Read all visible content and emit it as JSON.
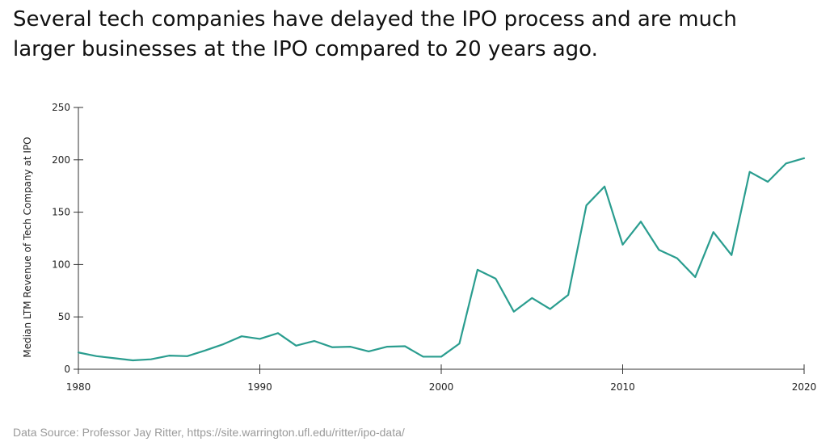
{
  "headline": {
    "line1": "Several tech companies have delayed the IPO process and are much",
    "line2": "larger businesses at the IPO compared to 20 years ago."
  },
  "source_note": "Data Source: Professor Jay Ritter, https://site.warrington.ufl.edu/ritter/ipo-data/",
  "colors": {
    "line": "#2a9d8f",
    "axis": "#333333",
    "text": "#222222"
  },
  "chart_data": {
    "type": "line",
    "title": "",
    "xlabel": "",
    "ylabel": "Median LTM Revenue of Tech Company at IPO",
    "xlim": [
      1980,
      2020
    ],
    "ylim": [
      0,
      250
    ],
    "xticks": [
      1980,
      1990,
      2000,
      2010,
      2020
    ],
    "yticks": [
      0,
      50,
      100,
      150,
      200,
      250
    ],
    "grid": false,
    "legend": "none",
    "series": [
      {
        "x": [
          1980,
          1981,
          1982,
          1983,
          1984,
          1985,
          1986,
          1987,
          1988,
          1989,
          1990,
          1991,
          1992,
          1993,
          1994,
          1995,
          1996,
          1997,
          1998,
          1999,
          2000,
          2001,
          2002,
          2003,
          2004,
          2005,
          2006,
          2007,
          2008,
          2009,
          2010,
          2011,
          2012,
          2013,
          2014,
          2015,
          2016,
          2017,
          2018,
          2019,
          2020
        ],
        "values": [
          16,
          12.5,
          10.5,
          8.5,
          9.5,
          13,
          12.5,
          18,
          24,
          31.5,
          29,
          34.5,
          22.5,
          27,
          21,
          21.5,
          17,
          21.5,
          22,
          12,
          12,
          24.5,
          95,
          86.5,
          55,
          68,
          57.5,
          71,
          156.5,
          174.5,
          119,
          141,
          114,
          106,
          88,
          131,
          109,
          188.5,
          179,
          196.5,
          201.5
        ]
      }
    ]
  }
}
